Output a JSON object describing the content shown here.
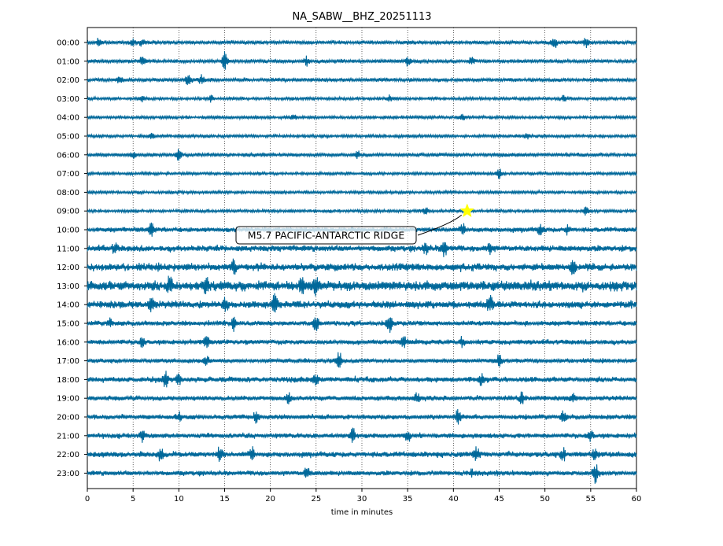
{
  "chart_data": {
    "type": "line",
    "title": "NA_SABW__BHZ_20251113",
    "xlabel": "time in minutes",
    "ylabel": "",
    "x_ticks": [
      0,
      5,
      10,
      15,
      20,
      25,
      30,
      35,
      40,
      45,
      50,
      55,
      60
    ],
    "xlim": [
      0,
      60
    ],
    "grid": "vertical dotted lines at every 5 minutes",
    "trace_color": "#00689a",
    "rows": [
      {
        "label": "00:00",
        "amp": 3,
        "events": [
          [
            1.2,
            5
          ],
          [
            5,
            4
          ],
          [
            6,
            5
          ],
          [
            51,
            8
          ],
          [
            54.5,
            6
          ]
        ]
      },
      {
        "label": "01:00",
        "amp": 3,
        "events": [
          [
            6,
            5
          ],
          [
            15,
            11
          ],
          [
            24,
            5
          ],
          [
            35,
            5
          ],
          [
            42,
            4
          ]
        ]
      },
      {
        "label": "02:00",
        "amp": 3,
        "events": [
          [
            3.5,
            4
          ],
          [
            11,
            6
          ],
          [
            12.5,
            5
          ]
        ]
      },
      {
        "label": "03:00",
        "amp": 2.5,
        "events": [
          [
            6,
            3
          ],
          [
            13.5,
            4
          ],
          [
            33,
            4
          ],
          [
            52,
            3
          ]
        ]
      },
      {
        "label": "04:00",
        "amp": 2.5,
        "events": [
          [
            22.5,
            4
          ],
          [
            41,
            3
          ]
        ]
      },
      {
        "label": "05:00",
        "amp": 2.5,
        "events": [
          [
            7,
            3
          ],
          [
            48,
            3
          ]
        ]
      },
      {
        "label": "06:00",
        "amp": 3,
        "events": [
          [
            5,
            4
          ],
          [
            10,
            6
          ],
          [
            29.5,
            5
          ]
        ]
      },
      {
        "label": "07:00",
        "amp": 2.5,
        "events": [
          [
            45,
            6
          ]
        ]
      },
      {
        "label": "08:00",
        "amp": 2.5,
        "events": []
      },
      {
        "label": "09:00",
        "amp": 2.5,
        "events": [
          [
            37,
            4
          ],
          [
            54.5,
            5
          ]
        ]
      },
      {
        "label": "10:00",
        "amp": 4,
        "events": [
          [
            7,
            8
          ],
          [
            41,
            6
          ],
          [
            49.5,
            6
          ],
          [
            52.5,
            5
          ]
        ]
      },
      {
        "label": "11:00",
        "amp": 5,
        "events": [
          [
            3,
            6
          ],
          [
            37,
            6
          ],
          [
            39,
            10
          ],
          [
            44,
            6
          ]
        ]
      },
      {
        "label": "12:00",
        "amp": 6,
        "events": [
          [
            16,
            8
          ],
          [
            53,
            8
          ]
        ]
      },
      {
        "label": "13:00",
        "amp": 8,
        "events": [
          [
            9,
            10
          ],
          [
            13,
            12
          ],
          [
            23.5,
            10
          ],
          [
            25,
            11
          ]
        ]
      },
      {
        "label": "14:00",
        "amp": 6,
        "events": [
          [
            7,
            9
          ],
          [
            15,
            7
          ],
          [
            20.5,
            12
          ],
          [
            44,
            10
          ]
        ]
      },
      {
        "label": "15:00",
        "amp": 4,
        "events": [
          [
            2.5,
            5
          ],
          [
            16,
            8
          ],
          [
            25,
            8
          ],
          [
            33,
            10
          ]
        ]
      },
      {
        "label": "16:00",
        "amp": 4,
        "events": [
          [
            6,
            5
          ],
          [
            13,
            6
          ],
          [
            34.5,
            8
          ],
          [
            41,
            6
          ]
        ]
      },
      {
        "label": "17:00",
        "amp": 3.5,
        "events": [
          [
            13,
            5
          ],
          [
            27.5,
            12
          ],
          [
            45,
            8
          ]
        ]
      },
      {
        "label": "18:00",
        "amp": 4.5,
        "events": [
          [
            8.5,
            12
          ],
          [
            10,
            7
          ],
          [
            25,
            6
          ],
          [
            43,
            6
          ]
        ]
      },
      {
        "label": "19:00",
        "amp": 4,
        "events": [
          [
            22,
            6
          ],
          [
            36,
            6
          ],
          [
            47.5,
            8
          ],
          [
            53,
            6
          ]
        ]
      },
      {
        "label": "20:00",
        "amp": 4,
        "events": [
          [
            10,
            5
          ],
          [
            18.5,
            8
          ],
          [
            40.5,
            10
          ],
          [
            52,
            6
          ]
        ]
      },
      {
        "label": "21:00",
        "amp": 4,
        "events": [
          [
            6,
            8
          ],
          [
            29,
            9
          ],
          [
            35,
            6
          ],
          [
            55,
            6
          ]
        ]
      },
      {
        "label": "22:00",
        "amp": 4.5,
        "events": [
          [
            8,
            8
          ],
          [
            14.5,
            10
          ],
          [
            18,
            7
          ],
          [
            42.5,
            8
          ],
          [
            52,
            7
          ],
          [
            55.5,
            8
          ]
        ]
      },
      {
        "label": "23:00",
        "amp": 4,
        "events": [
          [
            24,
            7
          ],
          [
            42,
            5
          ],
          [
            55.5,
            12
          ]
        ]
      }
    ],
    "annotation": {
      "text": "M5.7 PACIFIC-ANTARCTIC RIDGE",
      "marker_time_min": 41.5,
      "marker_row_label": "09:00",
      "marker_color": "#ffff00"
    }
  }
}
